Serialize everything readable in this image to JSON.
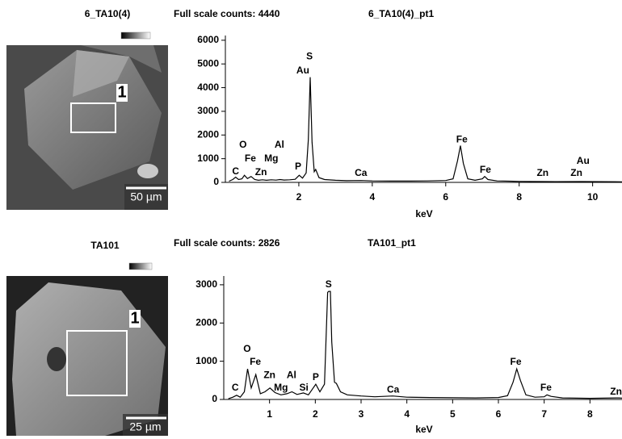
{
  "chart_data": [
    {
      "type": "line",
      "image_title": "6_TA10(4)",
      "region_label": "1",
      "scale_bar": "50 µm",
      "title": "Full scale counts: 4440",
      "subtitle": "6_TA10(4)_pt1",
      "xlabel": "keV",
      "xlim": [
        0,
        10.8
      ],
      "xticks": [
        2,
        4,
        6,
        8,
        10
      ],
      "ylim": [
        0,
        6200
      ],
      "yticks": [
        0,
        1000,
        2000,
        3000,
        4000,
        5000,
        6000
      ],
      "series": [
        {
          "color": "#000000",
          "x": [
            0.1,
            0.2,
            0.28,
            0.36,
            0.45,
            0.52,
            0.6,
            0.7,
            0.8,
            0.9,
            1.01,
            1.12,
            1.25,
            1.38,
            1.49,
            1.6,
            1.75,
            1.9,
            2.01,
            2.1,
            2.2,
            2.26,
            2.31,
            2.36,
            2.42,
            2.46,
            2.55,
            2.7,
            3.0,
            3.3,
            3.69,
            4.0,
            4.5,
            5.0,
            5.5,
            6.0,
            6.2,
            6.32,
            6.4,
            6.48,
            6.6,
            6.8,
            7.0,
            7.06,
            7.15,
            7.4,
            8.0,
            8.6,
            9.0,
            9.7,
            10.2,
            10.8
          ],
          "values": [
            50,
            120,
            220,
            120,
            150,
            300,
            160,
            250,
            120,
            90,
            110,
            90,
            110,
            95,
            120,
            100,
            110,
            130,
            300,
            180,
            400,
            1800,
            4440,
            1700,
            450,
            550,
            200,
            120,
            90,
            70,
            80,
            60,
            55,
            55,
            60,
            80,
            150,
            900,
            1550,
            800,
            150,
            90,
            150,
            250,
            120,
            60,
            40,
            35,
            30,
            35,
            30,
            25
          ]
        }
      ],
      "annotations": [
        {
          "text": "C",
          "x": 0.28,
          "y": 450
        },
        {
          "text": "O",
          "x": 0.48,
          "y": 1575
        },
        {
          "text": "Fe",
          "x": 0.68,
          "y": 1000
        },
        {
          "text": "Zn",
          "x": 0.97,
          "y": 410
        },
        {
          "text": "Mg",
          "x": 1.25,
          "y": 1000
        },
        {
          "text": "Al",
          "x": 1.47,
          "y": 1575
        },
        {
          "text": "P",
          "x": 1.98,
          "y": 650
        },
        {
          "text": "S",
          "x": 2.29,
          "y": 5300
        },
        {
          "text": "Au",
          "x": 2.11,
          "y": 4700
        },
        {
          "text": "Ca",
          "x": 3.69,
          "y": 380
        },
        {
          "text": "Fe",
          "x": 6.44,
          "y": 1800
        },
        {
          "text": "Fe",
          "x": 7.08,
          "y": 510
        },
        {
          "text": "Zn",
          "x": 8.64,
          "y": 380
        },
        {
          "text": "Zn",
          "x": 9.56,
          "y": 380
        },
        {
          "text": "Au",
          "x": 9.74,
          "y": 890
        }
      ]
    },
    {
      "type": "line",
      "image_title": "TA101",
      "region_label": "1",
      "scale_bar": "25 µm",
      "title": "Full scale counts: 2826",
      "subtitle": "TA101_pt1",
      "xlabel": "keV",
      "xlim": [
        0,
        8.7
      ],
      "xticks": [
        1,
        2,
        3,
        4,
        5,
        6,
        7,
        8
      ],
      "ylim": [
        0,
        3230
      ],
      "yticks": [
        0,
        1000,
        2000,
        3000
      ],
      "series": [
        {
          "color": "#000000",
          "x": [
            0.1,
            0.2,
            0.28,
            0.36,
            0.45,
            0.52,
            0.6,
            0.7,
            0.8,
            0.9,
            1.01,
            1.12,
            1.25,
            1.38,
            1.49,
            1.6,
            1.74,
            1.85,
            2.01,
            2.1,
            2.2,
            2.27,
            2.29,
            2.33,
            2.36,
            2.42,
            2.46,
            2.55,
            2.7,
            3.0,
            3.3,
            3.69,
            4.0,
            4.5,
            5.0,
            5.5,
            6.0,
            6.2,
            6.32,
            6.4,
            6.48,
            6.6,
            6.8,
            7.0,
            7.06,
            7.15,
            7.4,
            8.0,
            8.63,
            8.7
          ],
          "values": [
            20,
            60,
            110,
            60,
            200,
            800,
            300,
            650,
            150,
            200,
            300,
            180,
            120,
            150,
            200,
            130,
            170,
            120,
            400,
            200,
            400,
            2800,
            2826,
            2826,
            1500,
            450,
            420,
            200,
            120,
            90,
            70,
            90,
            60,
            50,
            45,
            40,
            50,
            100,
            450,
            800,
            500,
            120,
            60,
            70,
            120,
            80,
            40,
            30,
            40,
            35
          ]
        }
      ],
      "annotations": [
        {
          "text": "C",
          "x": 0.25,
          "y": 300
        },
        {
          "text": "O",
          "x": 0.51,
          "y": 1310
        },
        {
          "text": "Fe",
          "x": 0.69,
          "y": 970
        },
        {
          "text": "Zn",
          "x": 1.0,
          "y": 630
        },
        {
          "text": "Mg",
          "x": 1.25,
          "y": 300
        },
        {
          "text": "Al",
          "x": 1.48,
          "y": 630
        },
        {
          "text": "Si",
          "x": 1.75,
          "y": 300
        },
        {
          "text": "P",
          "x": 2.01,
          "y": 570
        },
        {
          "text": "S",
          "x": 2.29,
          "y": 3000
        },
        {
          "text": "Ca",
          "x": 3.7,
          "y": 250
        },
        {
          "text": "Fe",
          "x": 6.38,
          "y": 970
        },
        {
          "text": "Fe",
          "x": 7.04,
          "y": 300
        },
        {
          "text": "Zn",
          "x": 8.57,
          "y": 190
        }
      ]
    }
  ]
}
